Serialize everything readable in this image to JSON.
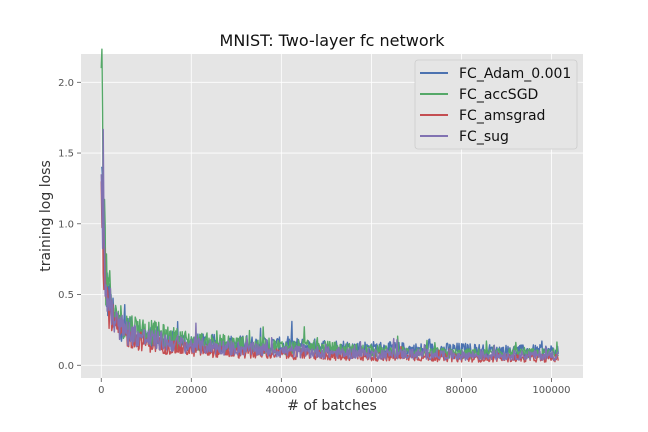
{
  "chart_data": {
    "type": "line",
    "title": "MNIST: Two-layer fc network",
    "xlabel": "# of batches",
    "ylabel": "training log loss",
    "xlim": [
      -4500,
      107000
    ],
    "ylim": [
      -0.09,
      2.2
    ],
    "xticks": [
      0,
      20000,
      40000,
      60000,
      80000,
      100000
    ],
    "yticks": [
      0.0,
      0.5,
      1.0,
      1.5,
      2.0
    ],
    "xtick_labels": [
      "0",
      "20000",
      "40000",
      "60000",
      "80000",
      "100000"
    ],
    "ytick_labels": [
      "0.0",
      "0.5",
      "1.0",
      "1.5",
      "2.0"
    ],
    "grid": true,
    "legend_position": "top-right",
    "series": [
      {
        "name": "FC_Adam_0.001",
        "color": "#4c72b0",
        "x": [
          0,
          1000,
          3000,
          6000,
          10000,
          15000,
          20000,
          30000,
          40000,
          50000,
          60000,
          70000,
          80000,
          90000,
          101500
        ],
        "y": [
          1.4,
          0.55,
          0.3,
          0.25,
          0.21,
          0.18,
          0.16,
          0.15,
          0.14,
          0.13,
          0.12,
          0.11,
          0.11,
          0.1,
          0.1
        ]
      },
      {
        "name": "FC_accSGD",
        "color": "#55a868",
        "x": [
          0,
          1000,
          3000,
          6000,
          10000,
          15000,
          20000,
          30000,
          40000,
          50000,
          60000,
          70000,
          80000,
          90000,
          101500
        ],
        "y": [
          2.1,
          0.6,
          0.35,
          0.28,
          0.24,
          0.2,
          0.17,
          0.15,
          0.13,
          0.12,
          0.1,
          0.09,
          0.08,
          0.08,
          0.08
        ]
      },
      {
        "name": "FC_amsgrad",
        "color": "#c44e52",
        "x": [
          0,
          1000,
          3000,
          6000,
          10000,
          15000,
          20000,
          30000,
          40000,
          50000,
          60000,
          70000,
          80000,
          90000,
          101500
        ],
        "y": [
          1.3,
          0.5,
          0.27,
          0.2,
          0.16,
          0.13,
          0.11,
          0.09,
          0.08,
          0.07,
          0.06,
          0.06,
          0.05,
          0.05,
          0.05
        ]
      },
      {
        "name": "FC_sug",
        "color": "#8172b2",
        "x": [
          0,
          1000,
          3000,
          6000,
          10000,
          15000,
          20000,
          30000,
          40000,
          50000,
          60000,
          70000,
          80000,
          90000,
          101500
        ],
        "y": [
          1.35,
          0.52,
          0.3,
          0.23,
          0.19,
          0.16,
          0.14,
          0.12,
          0.1,
          0.09,
          0.08,
          0.08,
          0.07,
          0.07,
          0.07
        ]
      }
    ]
  },
  "colors": {
    "plot_background": "#e5e5e5",
    "grid": "#ffffff"
  }
}
